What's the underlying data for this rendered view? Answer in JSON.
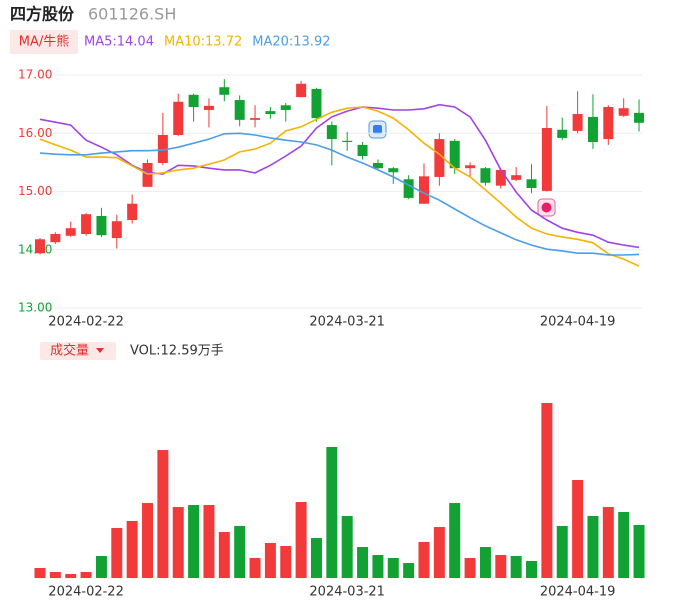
{
  "chart_data": {
    "type": "candlestick",
    "title": "四方股份",
    "subtitle": "601126.SH",
    "ma_button": "MA/牛熊",
    "up_color": "#f23a3a",
    "down_color": "#12a234",
    "categories": [
      null,
      null,
      null,
      "2024-02-22",
      null,
      null,
      null,
      null,
      null,
      null,
      null,
      null,
      null,
      null,
      null,
      null,
      null,
      null,
      null,
      null,
      "2024-03-21",
      null,
      null,
      null,
      null,
      null,
      null,
      null,
      null,
      null,
      null,
      null,
      null,
      null,
      null,
      "2024-04-19",
      null,
      null,
      null,
      null
    ],
    "open": [
      13.94,
      14.13,
      14.24,
      14.27,
      14.58,
      14.2,
      14.51,
      15.08,
      15.49,
      15.97,
      16.66,
      16.4,
      16.79,
      16.57,
      16.23,
      16.38,
      16.48,
      16.62,
      16.76,
      16.14,
      15.87,
      15.8,
      15.49,
      15.4,
      15.21,
      14.79,
      15.25,
      15.87,
      15.4,
      15.4,
      15.1,
      15.2,
      15.21,
      15.01,
      16.06,
      16.04,
      16.28,
      15.9,
      16.3,
      16.35
    ],
    "high": [
      14.2,
      14.3,
      14.48,
      14.63,
      14.72,
      14.6,
      14.95,
      15.55,
      16.35,
      16.68,
      16.68,
      16.6,
      16.93,
      16.65,
      16.48,
      16.45,
      16.52,
      16.9,
      16.78,
      16.2,
      16.02,
      15.85,
      15.55,
      15.42,
      15.28,
      15.48,
      16.0,
      15.9,
      15.5,
      15.42,
      15.4,
      15.42,
      15.47,
      16.47,
      16.27,
      16.72,
      16.67,
      16.48,
      16.6,
      16.58
    ],
    "low": [
      13.92,
      14.1,
      14.22,
      14.24,
      14.22,
      14.02,
      14.45,
      15.08,
      15.45,
      15.95,
      16.2,
      16.1,
      16.55,
      16.12,
      16.1,
      16.25,
      16.2,
      16.62,
      16.2,
      15.45,
      15.7,
      15.55,
      15.38,
      15.13,
      14.87,
      14.79,
      15.1,
      15.3,
      15.25,
      15.1,
      15.05,
      15.18,
      14.97,
      15.0,
      15.88,
      16.0,
      15.73,
      15.8,
      16.28,
      16.03
    ],
    "close": [
      14.18,
      14.27,
      14.37,
      14.61,
      14.25,
      14.49,
      14.79,
      15.49,
      15.97,
      16.54,
      16.45,
      16.47,
      16.66,
      16.23,
      16.26,
      16.33,
      16.4,
      16.85,
      16.26,
      15.9,
      15.85,
      15.61,
      15.4,
      15.33,
      14.89,
      15.26,
      15.9,
      15.4,
      15.45,
      15.15,
      15.37,
      15.28,
      15.06,
      16.09,
      15.92,
      16.33,
      15.85,
      16.45,
      16.43,
      16.18
    ],
    "series": [
      {
        "name": "MA5:14.04",
        "color": "#a044e6",
        "values": [
          16.24,
          16.19,
          16.14,
          15.88,
          15.76,
          15.63,
          15.45,
          15.33,
          15.3,
          15.45,
          15.44,
          15.4,
          15.37,
          15.37,
          15.32,
          15.45,
          15.61,
          15.78,
          16.09,
          16.28,
          16.38,
          16.45,
          16.43,
          16.4,
          16.4,
          16.42,
          16.49,
          16.45,
          16.28,
          15.88,
          15.37,
          14.99,
          14.68,
          14.51,
          14.37,
          14.3,
          14.25,
          14.13,
          14.08,
          14.04
        ]
      },
      {
        "name": "MA10:13.72",
        "color": "#f4b400",
        "values": [
          15.9,
          15.8,
          15.71,
          15.59,
          15.59,
          15.58,
          15.44,
          15.3,
          15.32,
          15.37,
          15.4,
          15.47,
          15.54,
          15.68,
          15.73,
          15.83,
          16.04,
          16.11,
          16.24,
          16.36,
          16.43,
          16.45,
          16.38,
          16.26,
          16.06,
          15.83,
          15.64,
          15.4,
          15.25,
          15.03,
          14.8,
          14.56,
          14.37,
          14.27,
          14.22,
          14.18,
          14.12,
          13.93,
          13.84,
          13.72
        ]
      },
      {
        "name": "MA20:13.92",
        "color": "#4b9ee8",
        "values": [
          15.66,
          15.64,
          15.63,
          15.63,
          15.66,
          15.68,
          15.7,
          15.7,
          15.71,
          15.76,
          15.83,
          15.9,
          15.99,
          16.0,
          15.97,
          15.92,
          15.88,
          15.85,
          15.8,
          15.71,
          15.59,
          15.49,
          15.37,
          15.25,
          15.11,
          14.97,
          14.85,
          14.7,
          14.55,
          14.41,
          14.29,
          14.17,
          14.08,
          14.01,
          13.98,
          13.94,
          13.94,
          13.91,
          13.91,
          13.92
        ]
      }
    ],
    "ylim": [
      13,
      17
    ],
    "yticks": [
      {
        "value": 13,
        "label": "13.00"
      },
      {
        "value": 14,
        "label": "14.00"
      },
      {
        "value": 15,
        "label": "15.00"
      },
      {
        "value": 16,
        "label": "16.00"
      },
      {
        "value": 17,
        "label": "17.00"
      }
    ],
    "ytick_colors": [
      "#12a234",
      "#12a234",
      "#f23a3a",
      "#f23a3a",
      "#f23a3a"
    ],
    "grid": true,
    "volume": {
      "button": "成交量",
      "label": "VOL:12.59万手",
      "values": [
        2.38,
        1.43,
        0.95,
        1.43,
        5.23,
        11.88,
        13.54,
        17.81,
        30.4,
        16.86,
        17.34,
        17.34,
        10.93,
        12.35,
        4.75,
        8.31,
        7.6,
        18.05,
        9.5,
        31.12,
        14.73,
        7.36,
        5.46,
        4.75,
        3.56,
        8.55,
        12.11,
        17.81,
        4.75,
        7.36,
        5.46,
        5.23,
        4.04,
        41.57,
        12.35,
        23.28,
        14.73,
        16.86,
        15.68,
        12.59
      ]
    }
  }
}
